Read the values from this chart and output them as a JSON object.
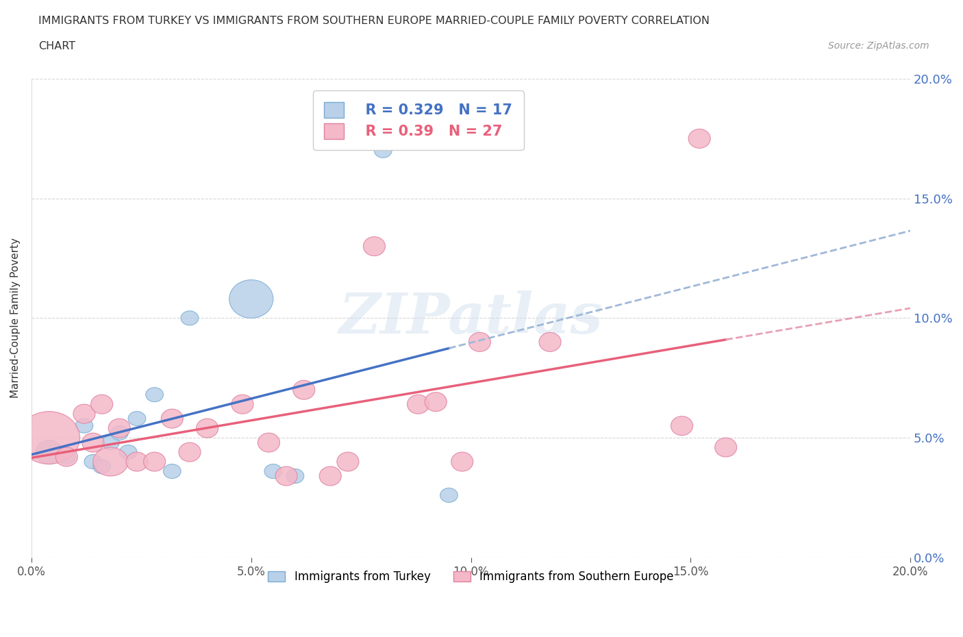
{
  "title_line1": "IMMIGRANTS FROM TURKEY VS IMMIGRANTS FROM SOUTHERN EUROPE MARRIED-COUPLE FAMILY POVERTY CORRELATION",
  "title_line2": "CHART",
  "source": "Source: ZipAtlas.com",
  "ylabel": "Married-Couple Family Poverty",
  "xmin": 0.0,
  "xmax": 0.2,
  "ymin": 0.0,
  "ymax": 0.2,
  "turkey_color": "#b8d0e8",
  "turkey_edge": "#7aacd4",
  "turkey_line_color": "#4472c4",
  "turkey_dash_color": "#a0b8d8",
  "southern_color": "#f4b8c8",
  "southern_edge": "#e080a0",
  "southern_line_color": "#e8607a",
  "southern_dash_color": "#e8a0b4",
  "turkey_R": 0.329,
  "turkey_N": 17,
  "southern_R": 0.39,
  "southern_N": 27,
  "background_color": "#ffffff",
  "grid_color": "#cccccc",
  "watermark": "ZIPatlas",
  "right_axis_color": "#4472c4",
  "turkey_x": [
    0.004,
    0.008,
    0.012,
    0.014,
    0.016,
    0.018,
    0.02,
    0.022,
    0.024,
    0.028,
    0.032,
    0.036,
    0.05,
    0.055,
    0.06,
    0.08,
    0.095
  ],
  "turkey_y": [
    0.044,
    0.042,
    0.055,
    0.04,
    0.038,
    0.048,
    0.052,
    0.044,
    0.058,
    0.068,
    0.036,
    0.1,
    0.108,
    0.036,
    0.034,
    0.17,
    0.026
  ],
  "turkey_size_w": [
    0.006,
    0.004,
    0.004,
    0.004,
    0.004,
    0.004,
    0.004,
    0.004,
    0.004,
    0.004,
    0.004,
    0.004,
    0.01,
    0.004,
    0.004,
    0.004,
    0.004
  ],
  "turkey_size_h": [
    0.01,
    0.006,
    0.006,
    0.006,
    0.006,
    0.006,
    0.006,
    0.006,
    0.006,
    0.006,
    0.006,
    0.006,
    0.016,
    0.006,
    0.006,
    0.006,
    0.006
  ],
  "southern_x": [
    0.004,
    0.008,
    0.012,
    0.014,
    0.016,
    0.018,
    0.02,
    0.024,
    0.028,
    0.032,
    0.036,
    0.04,
    0.048,
    0.054,
    0.058,
    0.062,
    0.068,
    0.072,
    0.078,
    0.088,
    0.092,
    0.098,
    0.102,
    0.118,
    0.148,
    0.152,
    0.158
  ],
  "southern_y": [
    0.05,
    0.042,
    0.06,
    0.048,
    0.064,
    0.04,
    0.054,
    0.04,
    0.04,
    0.058,
    0.044,
    0.054,
    0.064,
    0.048,
    0.034,
    0.07,
    0.034,
    0.04,
    0.13,
    0.064,
    0.065,
    0.04,
    0.09,
    0.09,
    0.055,
    0.175,
    0.046
  ],
  "southern_size_w": [
    0.014,
    0.005,
    0.005,
    0.005,
    0.005,
    0.008,
    0.005,
    0.005,
    0.005,
    0.005,
    0.005,
    0.005,
    0.005,
    0.005,
    0.005,
    0.005,
    0.005,
    0.005,
    0.005,
    0.005,
    0.005,
    0.005,
    0.005,
    0.005,
    0.005,
    0.005,
    0.005
  ],
  "southern_size_h": [
    0.022,
    0.008,
    0.008,
    0.008,
    0.008,
    0.012,
    0.008,
    0.008,
    0.008,
    0.008,
    0.008,
    0.008,
    0.008,
    0.008,
    0.008,
    0.008,
    0.008,
    0.008,
    0.008,
    0.008,
    0.008,
    0.008,
    0.008,
    0.008,
    0.008,
    0.008,
    0.008
  ],
  "xticks": [
    0.0,
    0.05,
    0.1,
    0.15,
    0.2
  ],
  "yticks": [
    0.0,
    0.05,
    0.1,
    0.15,
    0.2
  ],
  "legend_labels": [
    "Immigrants from Turkey",
    "Immigrants from Southern Europe"
  ]
}
